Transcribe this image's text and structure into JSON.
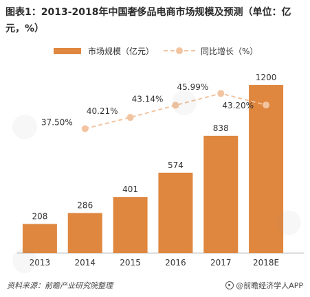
{
  "title": "图表1：2013-2018年中国奢侈品电商市场规模及预测（单位：亿元，%）",
  "footer": {
    "source": "资料来源：前瞻产业研究院整理",
    "app": "@前瞻经济学人APP",
    "app_icon": "weibo-icon"
  },
  "colors": {
    "bar": "#E0873F",
    "line": "#F2C4A0",
    "axis": "#BBBBBB",
    "text": "#333333"
  },
  "chart_data": {
    "type": "bar",
    "categories": [
      "2013",
      "2014",
      "2015",
      "2016",
      "2017",
      "2018E"
    ],
    "series": [
      {
        "name": "市场规模（亿元）",
        "type": "bar",
        "values": [
          208,
          286,
          401,
          574,
          838,
          1200
        ],
        "labels": [
          "208",
          "286",
          "401",
          "574",
          "838",
          "1200"
        ]
      },
      {
        "name": "同比增长（%）",
        "type": "line",
        "values": [
          null,
          37.5,
          40.21,
          43.14,
          45.99,
          43.2
        ],
        "labels": [
          "",
          "37.50%",
          "40.21%",
          "43.14%",
          "45.99%",
          "43.20%"
        ]
      }
    ],
    "bar_ylim": [
      0,
      1200
    ],
    "line_ylim": [
      30,
      48
    ],
    "grid": false,
    "legend_placement": "top"
  }
}
